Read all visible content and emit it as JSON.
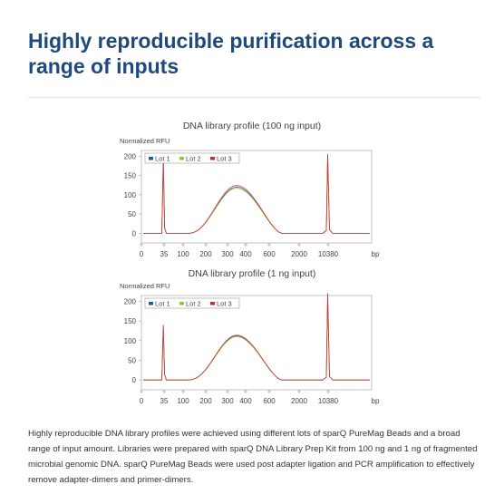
{
  "heading": "Highly reproducible purification across a range of inputs",
  "caption": "Highly reproducible DNA library profiles were achieved using different lots of sparQ PureMag Beads and a broad range of input amount. Libraries were prepared with sparQ DNA Library Prep Kit from 100 ng and 1 ng of fragmented microbial genomic DNA. sparQ PureMag Beads were used post adapter ligation and PCR amplification to effectively remove adapter-dimers and primer-dimers.",
  "colors": {
    "heading": "#1f4a7d",
    "lot1": "#1f5a93",
    "lot2": "#8cc63f",
    "lot3": "#d9232e"
  },
  "chart_data": [
    {
      "type": "line",
      "title": "DNA library profile (100 ng input)",
      "ylabel": "Normalized RFU",
      "xlabel": "bp",
      "x_tick_labels": [
        "0",
        "35",
        "100",
        "200",
        "300",
        "400",
        "600",
        "2000",
        "10380"
      ],
      "y_ticks": [
        0,
        50,
        100,
        150,
        200
      ],
      "ylim": [
        -25,
        215
      ],
      "grid": false,
      "legend_position": "top-left",
      "series": [
        {
          "name": "Lot 1",
          "color": "#1f5a93",
          "x": [
            "35",
            "100",
            "200",
            "300",
            "350",
            "400",
            "600",
            "2000",
            "10380"
          ],
          "y": [
            190,
            0,
            28,
            107,
            120,
            115,
            55,
            0,
            203
          ]
        },
        {
          "name": "Lot 2",
          "color": "#8cc63f",
          "x": [
            "35",
            "100",
            "200",
            "300",
            "350",
            "400",
            "600",
            "2000",
            "10380"
          ],
          "y": [
            185,
            0,
            27,
            104,
            117,
            112,
            53,
            0,
            200
          ]
        },
        {
          "name": "Lot 3",
          "color": "#d9232e",
          "x": [
            "35",
            "100",
            "200",
            "300",
            "350",
            "400",
            "600",
            "2000",
            "10380"
          ],
          "y": [
            195,
            0,
            29,
            110,
            124,
            118,
            57,
            0,
            205
          ]
        }
      ]
    },
    {
      "type": "line",
      "title": "DNA library profile (1 ng input)",
      "ylabel": "Normalized RFU",
      "xlabel": "bp",
      "x_tick_labels": [
        "0",
        "35",
        "100",
        "200",
        "300",
        "400",
        "600",
        "2000",
        "10380"
      ],
      "y_ticks": [
        0,
        50,
        100,
        150,
        200
      ],
      "ylim": [
        -25,
        215
      ],
      "grid": false,
      "legend_position": "top-left",
      "series": [
        {
          "name": "Lot 1",
          "color": "#1f5a93",
          "x": [
            "35",
            "100",
            "200",
            "300",
            "350",
            "400",
            "600",
            "2000",
            "10380"
          ],
          "y": [
            135,
            0,
            30,
            104,
            112,
            106,
            50,
            0,
            218
          ]
        },
        {
          "name": "Lot 2",
          "color": "#8cc63f",
          "x": [
            "35",
            "100",
            "200",
            "300",
            "350",
            "400",
            "600",
            "2000",
            "10380"
          ],
          "y": [
            132,
            0,
            29,
            102,
            110,
            104,
            49,
            0,
            215
          ]
        },
        {
          "name": "Lot 3",
          "color": "#d9232e",
          "x": [
            "35",
            "100",
            "200",
            "300",
            "350",
            "400",
            "600",
            "2000",
            "10380"
          ],
          "y": [
            140,
            0,
            31,
            106,
            114,
            108,
            51,
            0,
            220
          ]
        }
      ]
    }
  ]
}
